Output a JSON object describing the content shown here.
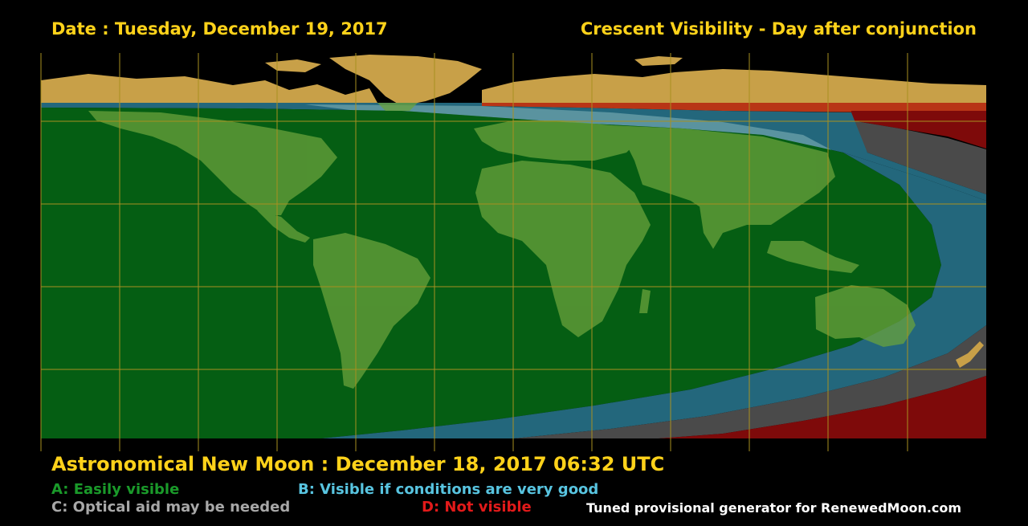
{
  "header": {
    "date": "Date : Tuesday, December 19, 2017",
    "title": "Crescent Visibility - Day after conjunction"
  },
  "footer": {
    "new_moon": "Astronomical New Moon : December 18, 2017 06:32 UTC",
    "credit": "Tuned provisional generator for RenewedMoon.com"
  },
  "legend": {
    "a": "A: Easily visible",
    "b": "B: Visible if conditions are very good",
    "c": "C: Optical aid may be needed",
    "d": "D: Not visible"
  },
  "colors": {
    "zone_a": "#055e13",
    "zone_b": "#23677c",
    "zone_c": "#4a4a4a",
    "zone_d": "#7e0a0a",
    "land": "#c8a048",
    "grid": "#a89020",
    "text_gold": "#ffd21a"
  }
}
